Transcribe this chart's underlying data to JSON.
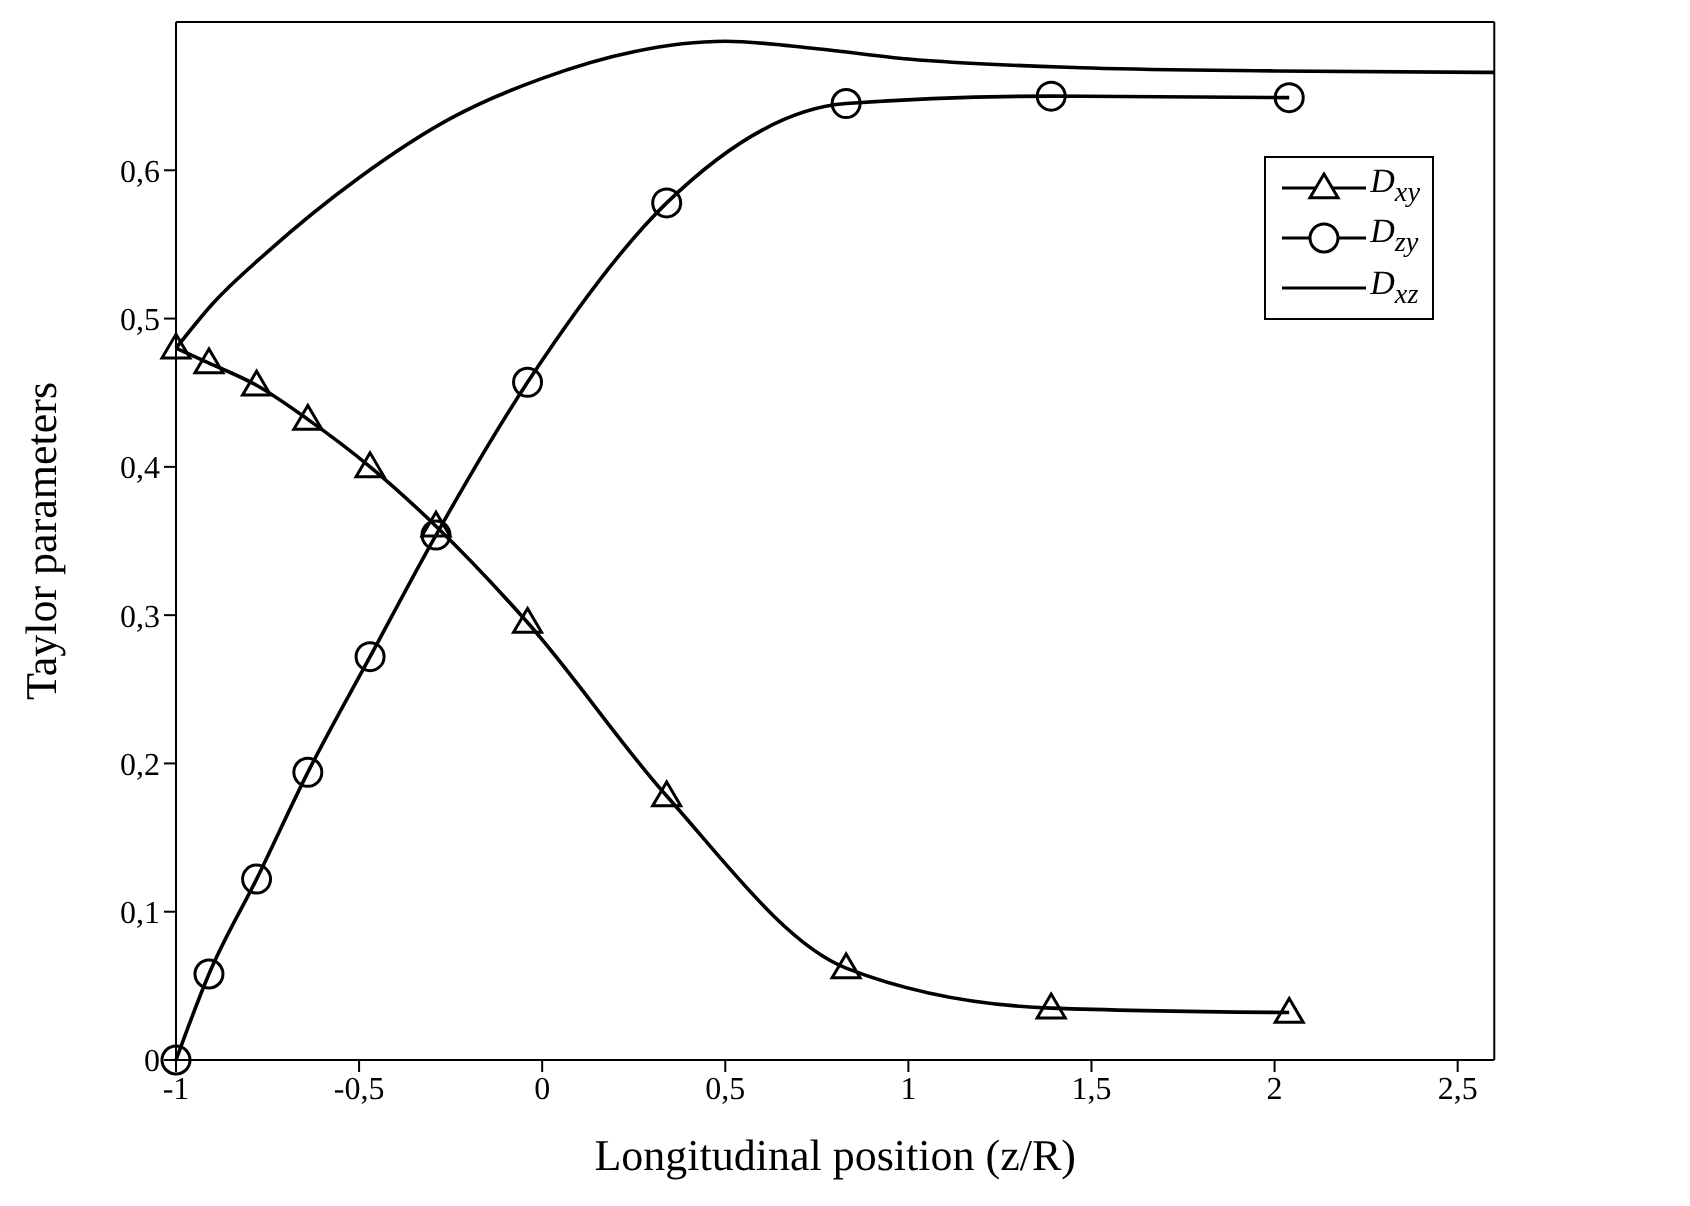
{
  "chart_data": {
    "type": "line",
    "xlabel": "Longitudinal position (z/R)",
    "ylabel": "Taylor parameters",
    "xlim": [
      -1,
      2.6
    ],
    "xticks": [
      {
        "value": -1,
        "label": "-1"
      },
      {
        "value": -0.5,
        "label": "-0,5"
      },
      0,
      {
        "value": 0.5,
        "label": "0,5"
      },
      1,
      {
        "value": 1.5,
        "label": "1,5"
      },
      2,
      {
        "value": 2.5,
        "label": "2,5"
      }
    ],
    "ylim": [
      0,
      0.7
    ],
    "yticks": [
      0,
      {
        "value": 0.1,
        "label": "0,1"
      },
      {
        "value": 0.2,
        "label": "0,2"
      },
      {
        "value": 0.3,
        "label": "0,3"
      },
      {
        "value": 0.4,
        "label": "0,4"
      },
      {
        "value": 0.5,
        "label": "0,5"
      },
      {
        "value": 0.6,
        "label": "0,6"
      }
    ],
    "grid": false,
    "legend": "top right",
    "series": [
      {
        "name": "D$_{xy}$",
        "color": "#000000",
        "marker": "triangle",
        "x": [
          -1,
          -0.91,
          -0.78,
          -0.64,
          -0.47,
          -0.29,
          -0.04,
          0.34,
          0.83,
          1.39,
          2.04
        ],
        "values": [
          0.48,
          0.47,
          0.455,
          0.432,
          0.4,
          0.36,
          0.295,
          0.178,
          0.062,
          0.035,
          0.032
        ]
      },
      {
        "name": "D$_{zy}$",
        "color": "#000000",
        "marker": "circle",
        "x": [
          -1,
          -0.91,
          -0.78,
          -0.64,
          -0.47,
          -0.29,
          -0.04,
          0.34,
          0.83,
          1.39,
          2.04
        ],
        "values": [
          0.0,
          0.058,
          0.122,
          0.194,
          0.272,
          0.354,
          0.457,
          0.578,
          0.645,
          0.65,
          0.649
        ]
      },
      {
        "name": "D$_{xz}$",
        "color": "#000000",
        "marker": "none",
        "x": [
          -1,
          -0.9,
          -0.75,
          -0.5,
          -0.25,
          0,
          0.25,
          0.5,
          0.75,
          1,
          1.5,
          2,
          2.6
        ],
        "values": [
          0.48,
          0.51,
          0.545,
          0.595,
          0.635,
          0.662,
          0.68,
          0.687,
          0.682,
          0.675,
          0.669,
          0.667,
          0.666
        ]
      }
    ]
  }
}
